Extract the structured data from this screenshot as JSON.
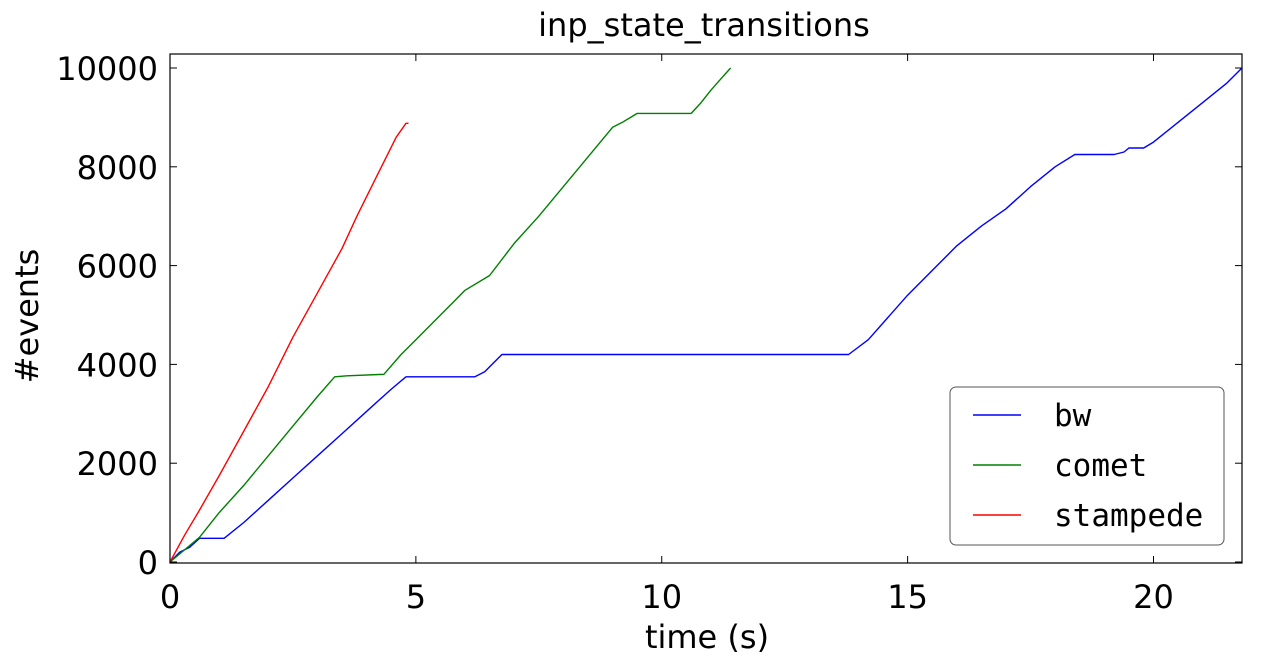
{
  "chart_data": {
    "type": "line",
    "title": "inp_state_transitions",
    "xlabel": "time (s)",
    "ylabel": "#events",
    "xlim": [
      0,
      21.8
    ],
    "ylim": [
      0,
      10000
    ],
    "xticks": [
      0,
      5,
      10,
      15,
      20
    ],
    "yticks": [
      0,
      2000,
      4000,
      6000,
      8000,
      10000
    ],
    "grid": false,
    "legend_position": "lower-right",
    "series": [
      {
        "name": "bw",
        "color": "#0000ff",
        "x": [
          0,
          0.2,
          0.4,
          0.6,
          1.1,
          1.5,
          2.0,
          2.5,
          3.0,
          3.5,
          4.0,
          4.5,
          4.8,
          6.2,
          6.4,
          6.75,
          8,
          10,
          12,
          13.8,
          14.2,
          14.6,
          15,
          15.5,
          16,
          16.5,
          17,
          17.5,
          18.0,
          18.4,
          19.2,
          19.4,
          19.5,
          19.8,
          20.0,
          20.5,
          21.0,
          21.5,
          21.8
        ],
        "y": [
          0,
          200,
          300,
          480,
          480,
          800,
          1250,
          1700,
          2150,
          2600,
          3050,
          3500,
          3750,
          3750,
          3850,
          4200,
          4200,
          4200,
          4200,
          4200,
          4500,
          4950,
          5400,
          5900,
          6400,
          6800,
          7150,
          7600,
          8000,
          8250,
          8250,
          8300,
          8380,
          8380,
          8500,
          8900,
          9300,
          9700,
          10000
        ]
      },
      {
        "name": "comet",
        "color": "#008000",
        "x": [
          0,
          0.3,
          0.6,
          1.0,
          1.5,
          2.0,
          2.5,
          3.0,
          3.35,
          3.6,
          4.35,
          4.7,
          5.0,
          5.5,
          5.8,
          6.0,
          6.5,
          7.0,
          7.5,
          8.0,
          8.5,
          9.0,
          9.2,
          9.5,
          10.6,
          10.8,
          11.0,
          11.2,
          11.4
        ],
        "y": [
          0,
          250,
          500,
          1000,
          1550,
          2150,
          2750,
          3350,
          3750,
          3770,
          3800,
          4200,
          4500,
          5000,
          5300,
          5500,
          5800,
          6450,
          7000,
          7600,
          8200,
          8800,
          8900,
          9080,
          9080,
          9300,
          9550,
          9780,
          10000
        ]
      },
      {
        "name": "stampede",
        "color": "#ff0000",
        "x": [
          0,
          0.3,
          0.6,
          1.0,
          1.5,
          2.0,
          2.5,
          3.0,
          3.5,
          3.8,
          4.2,
          4.6,
          4.8,
          4.85
        ],
        "y": [
          0,
          550,
          1050,
          1750,
          2650,
          3550,
          4550,
          5450,
          6350,
          7000,
          7800,
          8600,
          8880,
          8880
        ]
      }
    ]
  }
}
